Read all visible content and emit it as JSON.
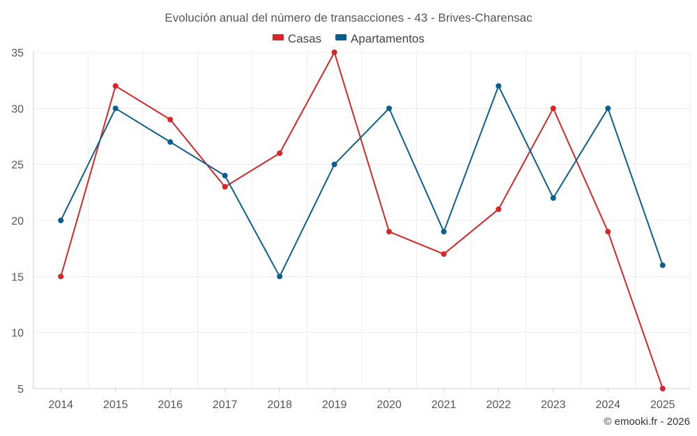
{
  "chart_data": {
    "type": "line",
    "title": "Evolución anual del número de transacciones - 43 - Brives-Charensac",
    "xlabel": "",
    "ylabel": "",
    "categories": [
      "2014",
      "2015",
      "2016",
      "2017",
      "2018",
      "2019",
      "2020",
      "2021",
      "2022",
      "2023",
      "2024",
      "2025"
    ],
    "ylim": [
      5,
      35
    ],
    "yticks": [
      5,
      10,
      15,
      20,
      25,
      30,
      35
    ],
    "grid": true,
    "legend_position": "top-center",
    "series": [
      {
        "name": "Casas",
        "color": "#d62728",
        "values": [
          15,
          32,
          29,
          23,
          26,
          35,
          19,
          17,
          21,
          30,
          19,
          5
        ]
      },
      {
        "name": "Apartamentos",
        "color": "#0b5f8f",
        "values": [
          20,
          30,
          27,
          24,
          15,
          25,
          30,
          19,
          32,
          22,
          30,
          16
        ]
      }
    ]
  },
  "credit": "© emooki.fr - 2026"
}
